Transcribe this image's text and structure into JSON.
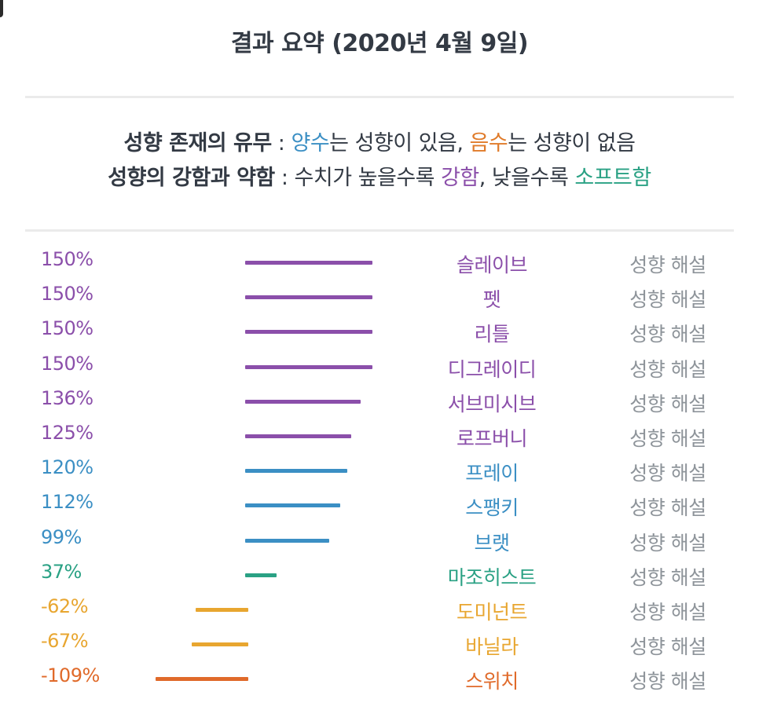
{
  "header": {
    "title": "결과 요약 (2020년 4월 9일)"
  },
  "legend": {
    "line1": {
      "label": "성향 존재의 유무",
      "sep": " : ",
      "pos_word": "양수",
      "pos_text": "는 성향이 있음, ",
      "neg_word": "음수",
      "neg_text": "는 성향이 없음"
    },
    "line2": {
      "label": "성향의 강함과 약함",
      "sep": " : ",
      "text1": "수치가 높을수록 ",
      "strong_word": "강함",
      "text2": ", 낮을수록 ",
      "soft_word": "소프트함"
    }
  },
  "colors": {
    "strong": "#8b4faa",
    "positive": "#3b8fc4",
    "soft": "#2aa184",
    "mild_negative": "#e8a630",
    "negative": "#e06a2a"
  },
  "chart_data": {
    "type": "bar",
    "orientation": "horizontal",
    "baseline": 0,
    "categories": [
      "슬레이브",
      "펫",
      "리틀",
      "디그레이디",
      "서브미시브",
      "로프버니",
      "프레이",
      "스팽키",
      "브랫",
      "마조히스트",
      "도미넌트",
      "바닐라",
      "스위치"
    ],
    "values": [
      150,
      150,
      150,
      150,
      136,
      125,
      120,
      112,
      99,
      37,
      -62,
      -67,
      -109
    ],
    "value_labels": [
      "150%",
      "150%",
      "150%",
      "150%",
      "136%",
      "125%",
      "120%",
      "112%",
      "99%",
      "37%",
      "-62%",
      "-67%",
      "-109%"
    ],
    "color_keys": [
      "strong",
      "strong",
      "strong",
      "strong",
      "strong",
      "strong",
      "positive",
      "positive",
      "positive",
      "soft",
      "mild_negative",
      "mild_negative",
      "negative"
    ],
    "row_action_label": "성향 해설"
  }
}
